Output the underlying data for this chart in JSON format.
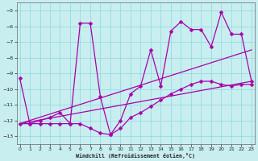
{
  "background_color": "#c8eef0",
  "grid_color": "#8ed8dc",
  "line_color": "#aa00aa",
  "xlim": [
    -0.3,
    23.3
  ],
  "ylim": [
    -13.5,
    -4.5
  ],
  "yticks": [
    -13,
    -12,
    -11,
    -10,
    -9,
    -8,
    -7,
    -6,
    -5
  ],
  "xticks": [
    0,
    1,
    2,
    3,
    4,
    5,
    6,
    7,
    8,
    9,
    10,
    11,
    12,
    13,
    14,
    15,
    16,
    17,
    18,
    19,
    20,
    21,
    22,
    23
  ],
  "xlabel": "Windchill (Refroidissement éolien,°C)",
  "line1_x": [
    0,
    1,
    2,
    3,
    4,
    5,
    6,
    7,
    8,
    9,
    10,
    11,
    12,
    13,
    14,
    15,
    16,
    17,
    18,
    19,
    20,
    21,
    22,
    23
  ],
  "line1_y": [
    -9.3,
    -12.2,
    -12.0,
    -11.8,
    -11.5,
    -12.2,
    -5.8,
    -5.8,
    -10.5,
    -12.9,
    -12.0,
    -10.3,
    -9.8,
    -7.5,
    -9.8,
    -6.3,
    -5.7,
    -6.2,
    -6.2,
    -7.3,
    -5.1,
    -6.5,
    -6.5,
    -9.5
  ],
  "line2_x": [
    0,
    1,
    2,
    3,
    4,
    5,
    6,
    7,
    8,
    9,
    10,
    11,
    12,
    13,
    14,
    15,
    16,
    17,
    18,
    19,
    20,
    21,
    22,
    23
  ],
  "line2_y": [
    -12.2,
    -12.2,
    -12.2,
    -12.2,
    -12.2,
    -12.2,
    -12.2,
    -12.5,
    -12.8,
    -12.9,
    -12.5,
    -11.8,
    -11.5,
    -11.1,
    -10.7,
    -10.3,
    -10.0,
    -9.7,
    -9.5,
    -9.5,
    -9.7,
    -9.8,
    -9.7,
    -9.7
  ],
  "line3_x": [
    0,
    23
  ],
  "line3_y": [
    -12.2,
    -7.5
  ],
  "line4_x": [
    0,
    23
  ],
  "line4_y": [
    -12.2,
    -9.5
  ],
  "markersize": 2.5
}
